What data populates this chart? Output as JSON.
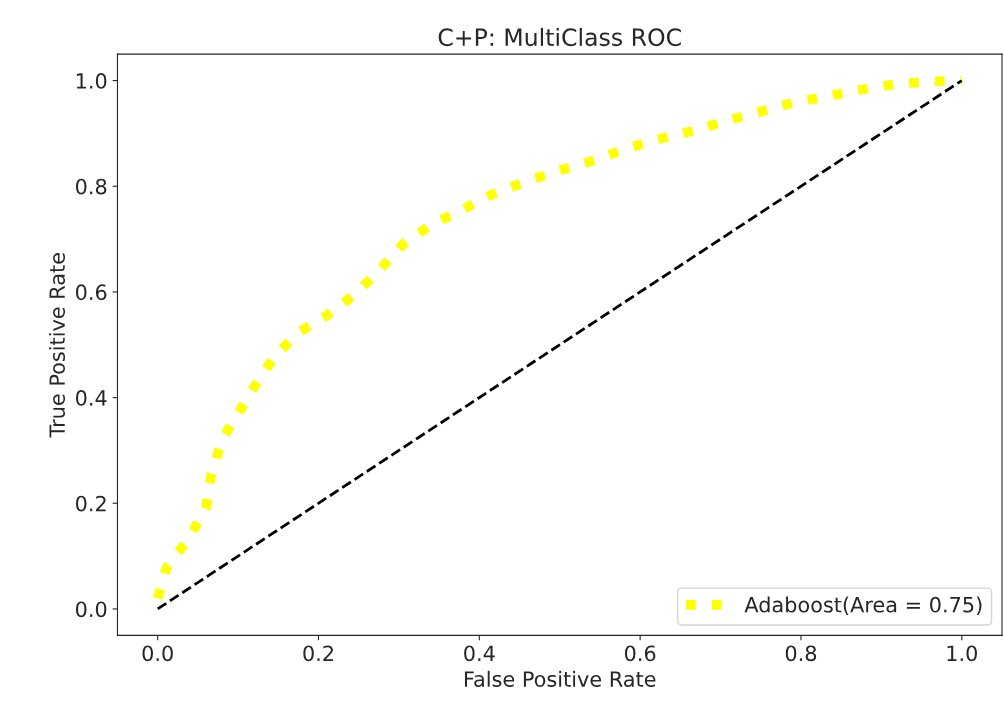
{
  "chart_data": {
    "type": "line",
    "title": "C+P: MultiClass ROC",
    "xlabel": "False Positive Rate",
    "ylabel": "True Positive Rate",
    "xlim": [
      -0.05,
      1.05
    ],
    "ylim": [
      -0.05,
      1.05
    ],
    "xticks": [
      {
        "value": 0,
        "label": "0.0"
      },
      0.2,
      0.4,
      0.6,
      0.8,
      {
        "value": 1,
        "label": "1.0"
      }
    ],
    "yticks": [
      {
        "value": 0,
        "label": "0.0"
      },
      0.2,
      0.4,
      0.6,
      0.8,
      {
        "value": 1,
        "label": "1.0"
      }
    ],
    "grid": false,
    "legend": "bottom right",
    "series": [
      {
        "name": "Adaboost(Area = 0.75)",
        "color": "#ffff00",
        "line_style": "dotted",
        "x": [
          0,
          0.011,
          0.037,
          0.06,
          0.066,
          0.08,
          0.1,
          0.12,
          0.146,
          0.177,
          0.21,
          0.245,
          0.275,
          0.305,
          0.34,
          0.38,
          0.415,
          0.46,
          0.5,
          0.545,
          0.58,
          0.625,
          0.667,
          0.71,
          0.747,
          0.79,
          0.833,
          0.876,
          0.92,
          0.962,
          1
        ],
        "values": [
          0.02,
          0.078,
          0.13,
          0.19,
          0.25,
          0.32,
          0.37,
          0.42,
          0.48,
          0.525,
          0.555,
          0.595,
          0.64,
          0.69,
          0.727,
          0.756,
          0.784,
          0.81,
          0.83,
          0.85,
          0.87,
          0.89,
          0.905,
          0.925,
          0.94,
          0.958,
          0.97,
          0.983,
          0.994,
          0.998,
          1
        ]
      },
      {
        "color": "#000000",
        "line_style": "dashed",
        "x": [
          0,
          1
        ],
        "values": [
          0,
          1
        ]
      }
    ]
  }
}
